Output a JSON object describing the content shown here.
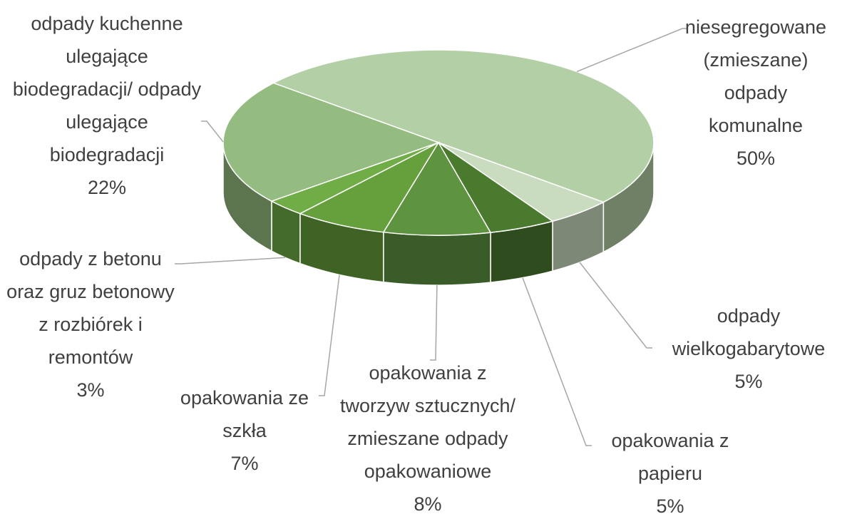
{
  "chart_data": {
    "type": "pie3d",
    "categories": [
      "niesegregowane (zmieszane) odpady komunalne",
      "odpady wielkogabarytowe",
      "opakowania z papieru",
      "opakowania z tworzyw sztucznych/ zmieszane odpady opakowaniowe",
      "opakowania ze szkła",
      "odpady z betonu oraz gruz betonowy z rozbiórek i remontów",
      "odpady kuchenne ulegające biodegradacji/ odpady ulegające biodegradacji"
    ],
    "values": [
      50,
      5,
      5,
      8,
      7,
      3,
      22
    ],
    "value_labels": [
      "50%",
      "5%",
      "5%",
      "8%",
      "7%",
      "3%",
      "22%"
    ],
    "colors": [
      "#b3cfa5",
      "#cadcc0",
      "#4a7a2e",
      "#5e9440",
      "#66a03c",
      "#70ad47",
      "#94bc80"
    ]
  }
}
